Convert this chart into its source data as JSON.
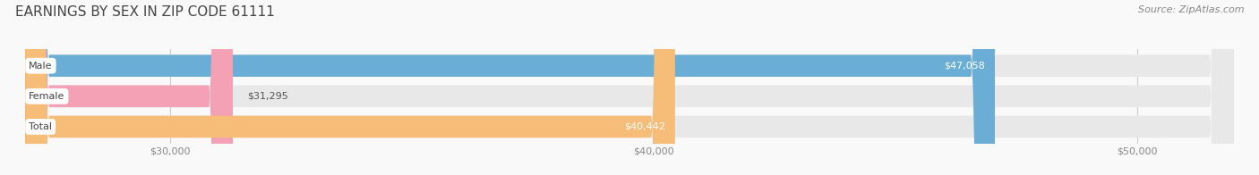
{
  "title": "EARNINGS BY SEX IN ZIP CODE 61111",
  "source": "Source: ZipAtlas.com",
  "categories": [
    "Male",
    "Female",
    "Total"
  ],
  "values": [
    47058,
    31295,
    40442
  ],
  "bar_colors": [
    "#6aaed6",
    "#f4a0b5",
    "#f5bd78"
  ],
  "bar_bg_color": "#e8e8e8",
  "xmin": 27000,
  "xmax": 52000,
  "xticks": [
    30000,
    40000,
    50000
  ],
  "xtick_labels": [
    "$30,000",
    "$40,000",
    "$50,000"
  ],
  "bar_height": 0.72,
  "title_fontsize": 11,
  "source_fontsize": 8,
  "tick_fontsize": 8,
  "label_fontsize": 8,
  "value_fontsize": 8,
  "bg_color": "#f9f9f9",
  "title_color": "#444444",
  "source_color": "#888888",
  "tick_color": "#888888",
  "value_text_color_inside": "#ffffff",
  "value_text_color_outside": "#555555",
  "category_text_color": "#444444",
  "grid_color": "#cccccc",
  "label_pill_color": "#ffffff"
}
